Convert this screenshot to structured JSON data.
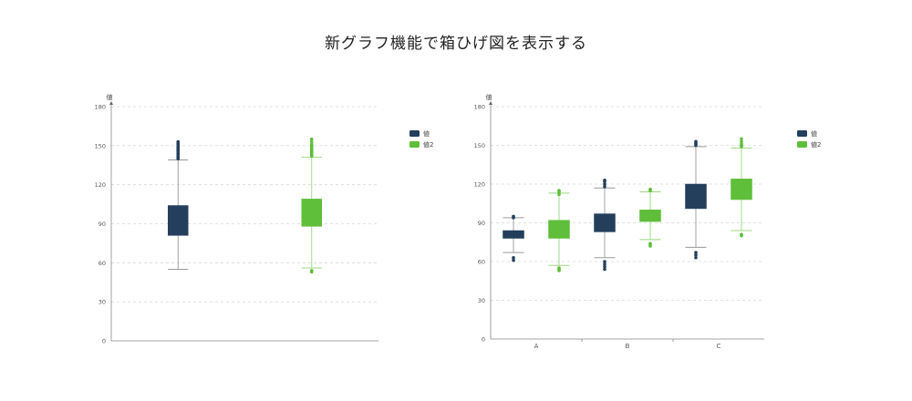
{
  "title": "新グラフ機能で箱ひげ図を表示する",
  "colors": {
    "series1": "#233f5c",
    "series2": "#5fbe3a",
    "grid": "#d9d9d9",
    "axis": "#888888"
  },
  "chart_data": [
    {
      "type": "box",
      "ylabel": "値",
      "ylim": [
        0,
        180
      ],
      "yticks": [
        "0",
        "30",
        "60",
        "90",
        "120",
        "150",
        "180"
      ],
      "grid": true,
      "legend": "right",
      "categories": [
        ""
      ],
      "series": [
        {
          "name": "値",
          "boxes": [
            {
              "min": 55,
              "q1": 81,
              "median": 92,
              "q3": 104,
              "max": 139,
              "outliers": [
                140,
                141,
                142,
                143,
                144,
                145,
                146,
                147,
                148,
                149,
                150,
                151,
                152,
                153
              ]
            }
          ]
        },
        {
          "name": "値2",
          "boxes": [
            {
              "min": 56,
              "q1": 88,
              "median": 98,
              "q3": 109,
              "max": 141,
              "outliers": [
                53,
                54,
                142,
                143,
                144,
                145,
                146,
                147,
                148,
                149,
                150,
                151,
                153,
                155
              ]
            }
          ]
        }
      ]
    },
    {
      "type": "box",
      "ylabel": "値",
      "ylim": [
        0,
        180
      ],
      "yticks": [
        "0",
        "30",
        "60",
        "90",
        "120",
        "150",
        "180"
      ],
      "grid": true,
      "legend": "right",
      "categories": [
        "A",
        "B",
        "C"
      ],
      "series": [
        {
          "name": "値",
          "boxes": [
            {
              "min": 67,
              "q1": 78,
              "median": 81,
              "q3": 84,
              "max": 94,
              "outliers": [
                61,
                63,
                94,
                95
              ]
            },
            {
              "min": 63,
              "q1": 83,
              "median": 90,
              "q3": 97,
              "max": 117,
              "outliers": [
                54,
                56,
                58,
                60,
                118,
                120,
                122,
                123
              ]
            },
            {
              "min": 71,
              "q1": 101,
              "median": 110,
              "q3": 120,
              "max": 149,
              "outliers": [
                63,
                65,
                67,
                150,
                151,
                152,
                153
              ]
            }
          ]
        },
        {
          "name": "値2",
          "boxes": [
            {
              "min": 57,
              "q1": 78,
              "median": 85,
              "q3": 92,
              "max": 113,
              "outliers": [
                53,
                54,
                55,
                112,
                114,
                115
              ]
            },
            {
              "min": 77,
              "q1": 91,
              "median": 95,
              "q3": 100,
              "max": 114,
              "outliers": [
                72,
                73,
                74,
                115,
                116
              ]
            },
            {
              "min": 84,
              "q1": 108,
              "median": 116,
              "q3": 124,
              "max": 148,
              "outliers": [
                80,
                81,
                149,
                150,
                151,
                153,
                155
              ]
            }
          ]
        }
      ]
    }
  ]
}
